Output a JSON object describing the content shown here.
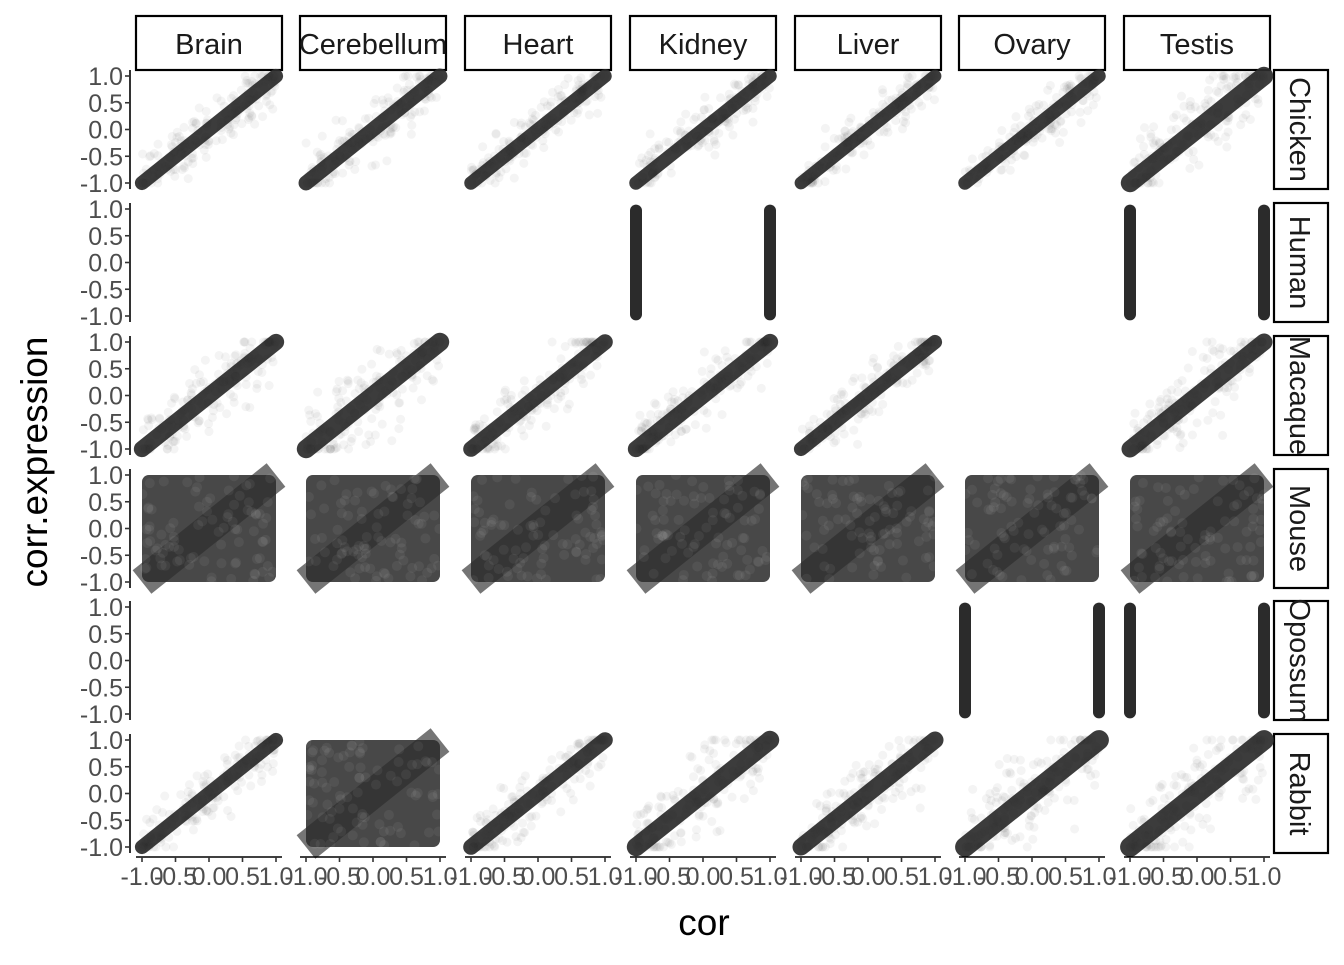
{
  "chart_data": {
    "type": "scatter",
    "facet_columns": [
      "Brain",
      "Cerebellum",
      "Heart",
      "Kidney",
      "Liver",
      "Ovary",
      "Testis"
    ],
    "facet_rows": [
      "Chicken",
      "Human",
      "Macaque",
      "Mouse",
      "Opossum",
      "Rabbit"
    ],
    "xlabel": "cor",
    "ylabel": "corr.expression",
    "xlim": [
      -1.0,
      1.0
    ],
    "ylim": [
      -1.0,
      1.0
    ],
    "x_ticks": [
      -1.0,
      -0.5,
      0.0,
      0.5,
      1.0
    ],
    "y_ticks": [
      -1.0,
      -0.5,
      0.0,
      0.5,
      1.0
    ],
    "x_tick_labels": [
      "-1.0",
      "-0.5",
      "0.0",
      "0.5",
      "1.0"
    ],
    "y_tick_labels": [
      "-1.0",
      "-0.5",
      "0.0",
      "0.5",
      "1.0"
    ],
    "grid": false,
    "point_color": "#2b2b2b",
    "point_opacity": "very low (dense overplotting)",
    "panels": [
      {
        "column": "Brain",
        "row": "Chicken",
        "pattern": "diagonal",
        "spread": 0.06
      },
      {
        "column": "Cerebellum",
        "row": "Chicken",
        "pattern": "diagonal",
        "spread": 0.07
      },
      {
        "column": "Heart",
        "row": "Chicken",
        "pattern": "diagonal",
        "spread": 0.05
      },
      {
        "column": "Kidney",
        "row": "Chicken",
        "pattern": "diagonal",
        "spread": 0.05
      },
      {
        "column": "Liver",
        "row": "Chicken",
        "pattern": "diagonal",
        "spread": 0.04
      },
      {
        "column": "Ovary",
        "row": "Chicken",
        "pattern": "diagonal",
        "spread": 0.05
      },
      {
        "column": "Testis",
        "row": "Chicken",
        "pattern": "diagonal",
        "spread": 0.12
      },
      {
        "column": "Kidney",
        "row": "Human",
        "pattern": "vertical-bands",
        "x_values": [
          -1.0,
          1.0
        ]
      },
      {
        "column": "Testis",
        "row": "Human",
        "pattern": "vertical-bands",
        "x_values": [
          -1.0,
          1.0
        ]
      },
      {
        "column": "Brain",
        "row": "Macaque",
        "pattern": "diagonal",
        "spread": 0.09
      },
      {
        "column": "Cerebellum",
        "row": "Macaque",
        "pattern": "diagonal",
        "spread": 0.12
      },
      {
        "column": "Heart",
        "row": "Macaque",
        "pattern": "diagonal",
        "spread": 0.08
      },
      {
        "column": "Kidney",
        "row": "Macaque",
        "pattern": "diagonal",
        "spread": 0.09
      },
      {
        "column": "Liver",
        "row": "Macaque",
        "pattern": "diagonal",
        "spread": 0.06
      },
      {
        "column": "Testis",
        "row": "Macaque",
        "pattern": "diagonal",
        "spread": 0.1
      },
      {
        "column": "Brain",
        "row": "Mouse",
        "pattern": "dense-fill"
      },
      {
        "column": "Cerebellum",
        "row": "Mouse",
        "pattern": "dense-fill"
      },
      {
        "column": "Heart",
        "row": "Mouse",
        "pattern": "dense-fill"
      },
      {
        "column": "Kidney",
        "row": "Mouse",
        "pattern": "dense-fill"
      },
      {
        "column": "Liver",
        "row": "Mouse",
        "pattern": "dense-fill"
      },
      {
        "column": "Ovary",
        "row": "Mouse",
        "pattern": "dense-fill"
      },
      {
        "column": "Testis",
        "row": "Mouse",
        "pattern": "dense-fill"
      },
      {
        "column": "Ovary",
        "row": "Opossum",
        "pattern": "vertical-bands",
        "x_values": [
          -1.0,
          1.0
        ]
      },
      {
        "column": "Testis",
        "row": "Opossum",
        "pattern": "vertical-bands",
        "x_values": [
          -1.0,
          1.0
        ]
      },
      {
        "column": "Brain",
        "row": "Rabbit",
        "pattern": "diagonal",
        "spread": 0.06
      },
      {
        "column": "Cerebellum",
        "row": "Rabbit",
        "pattern": "dense-fill"
      },
      {
        "column": "Heart",
        "row": "Rabbit",
        "pattern": "diagonal",
        "spread": 0.08
      },
      {
        "column": "Kidney",
        "row": "Rabbit",
        "pattern": "diagonal",
        "spread": 0.12
      },
      {
        "column": "Liver",
        "row": "Rabbit",
        "pattern": "diagonal",
        "spread": 0.1
      },
      {
        "column": "Ovary",
        "row": "Rabbit",
        "pattern": "diagonal",
        "spread": 0.14
      },
      {
        "column": "Testis",
        "row": "Rabbit",
        "pattern": "diagonal",
        "spread": 0.14
      }
    ]
  }
}
